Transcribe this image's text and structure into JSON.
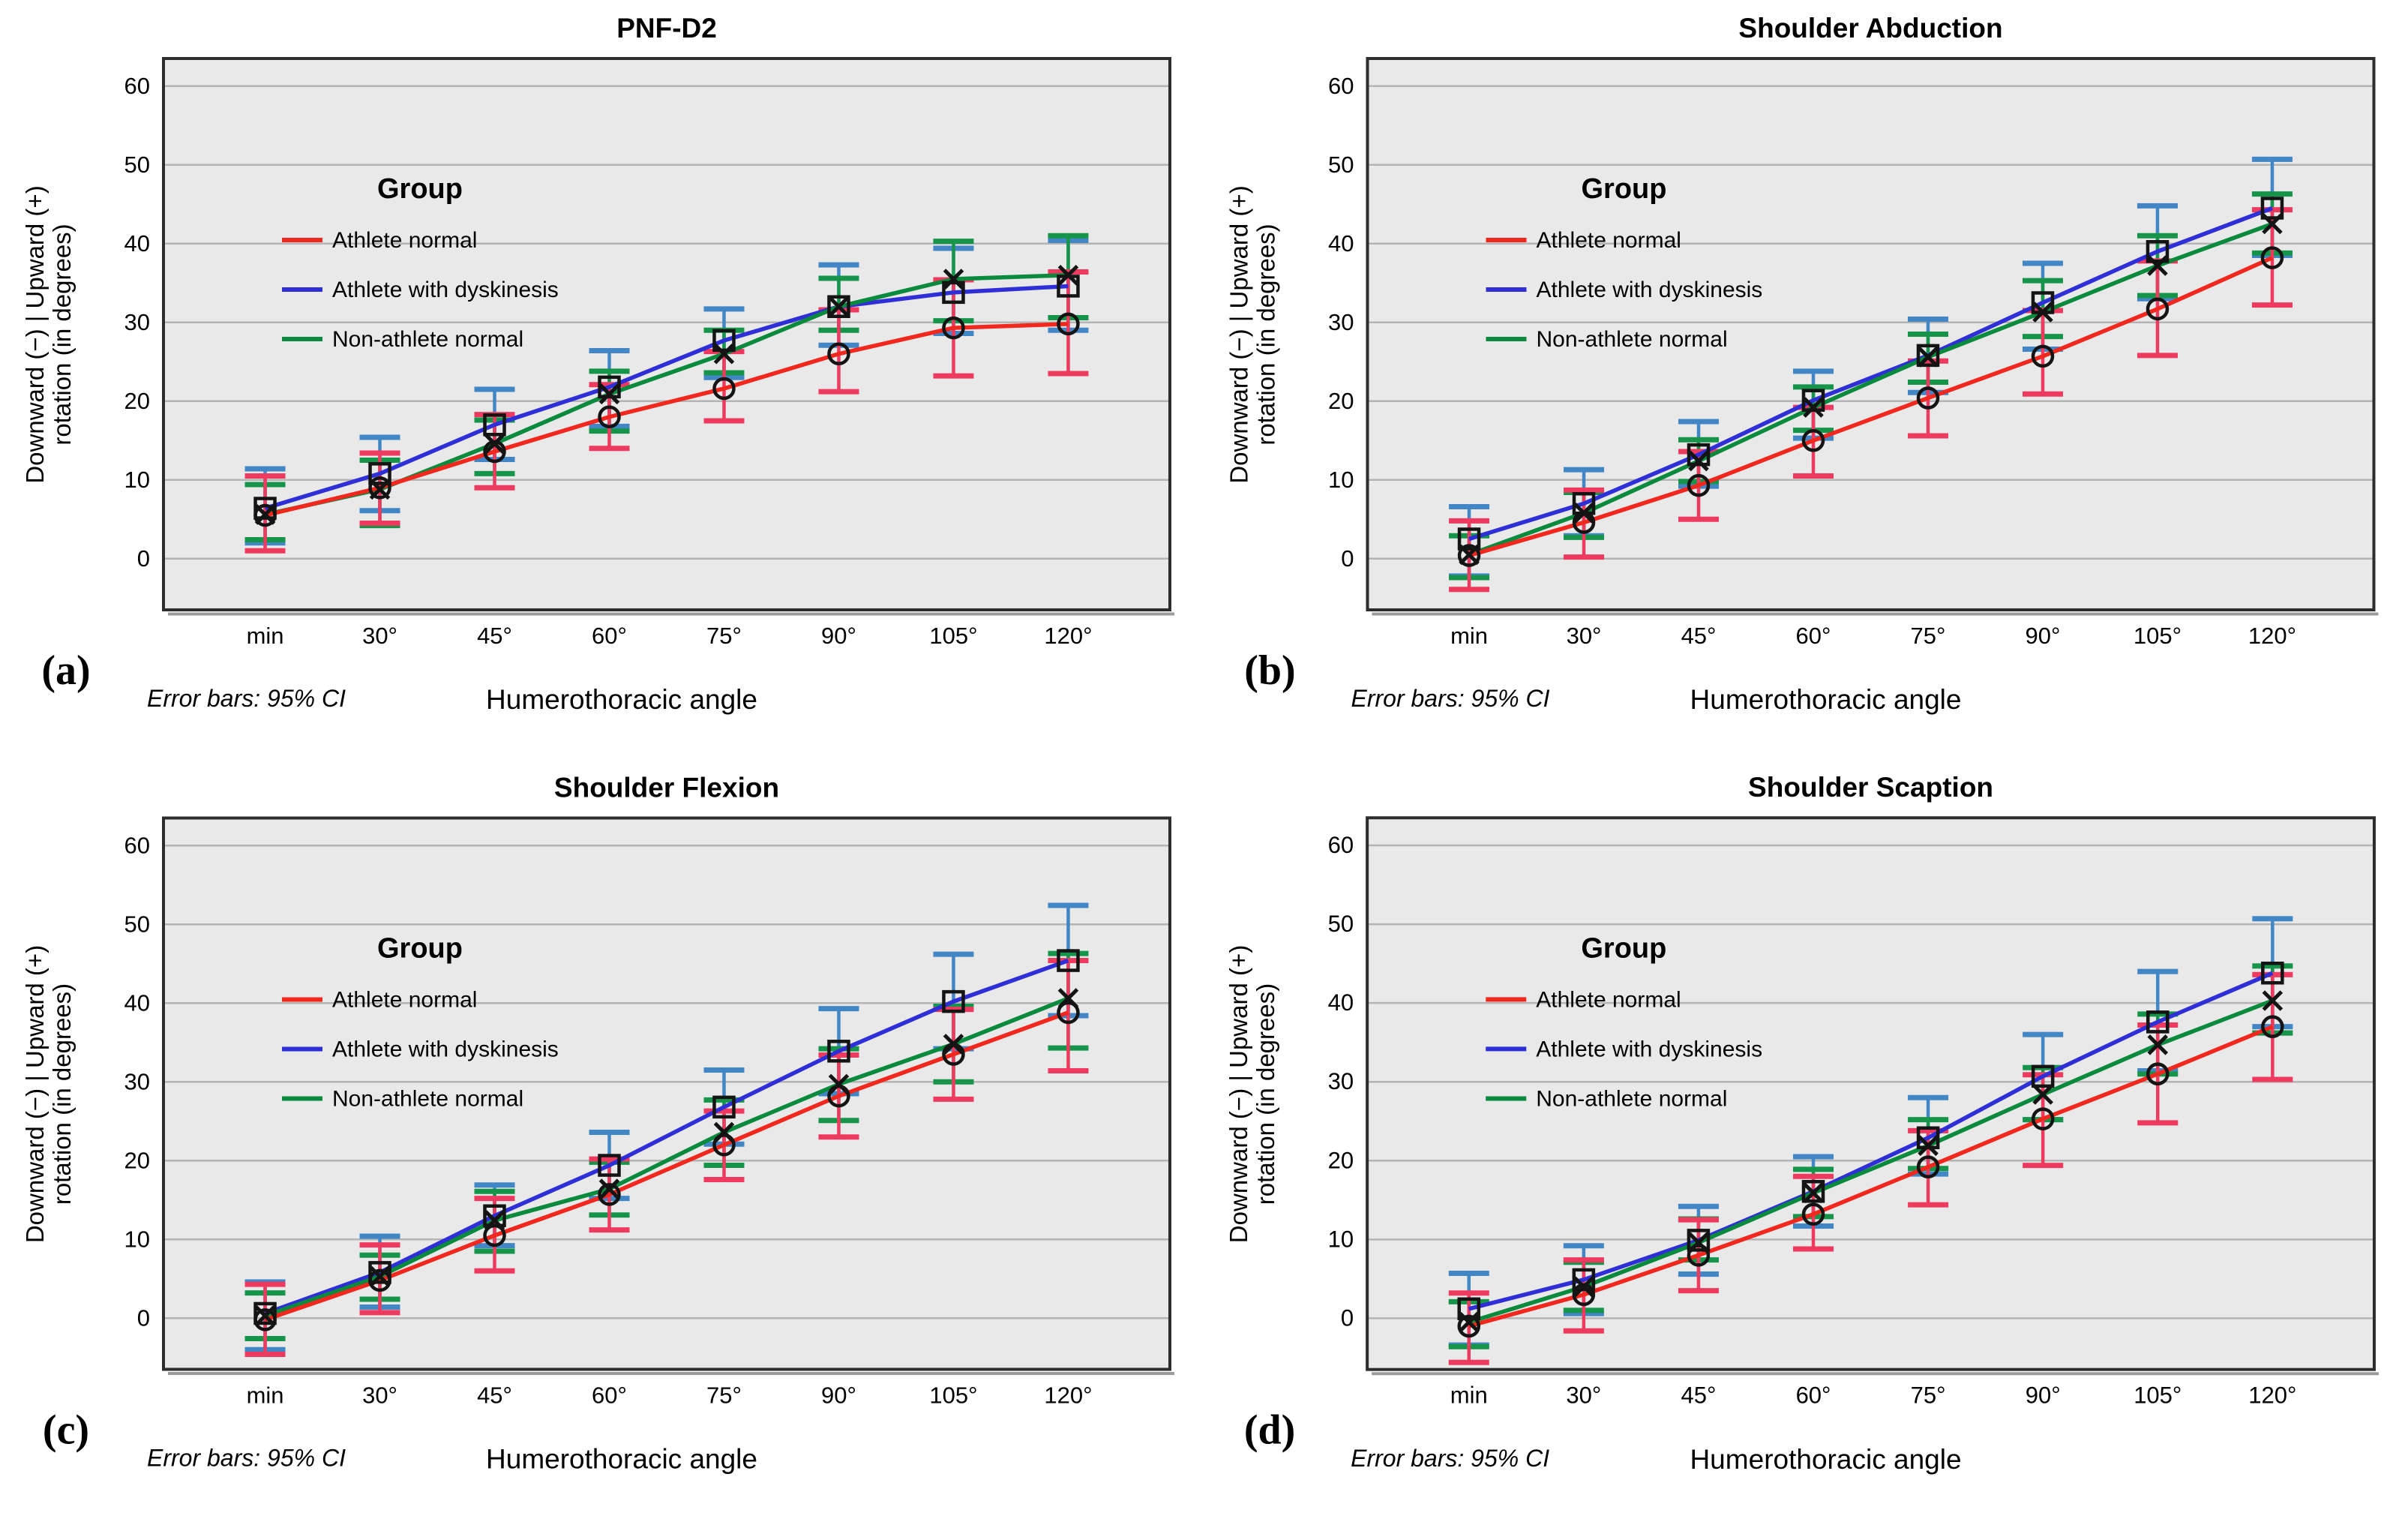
{
  "figure": {
    "error_note": "Error bars: 95% CI",
    "x_axis_label": "Humerothoracic angle",
    "y_axis_label_line1": "Downward (−) | Upward (+)",
    "y_axis_label_line2": "rotation (in degrees)",
    "legend_title": "Group",
    "y_ticks": [
      0,
      10,
      20,
      30,
      40,
      50,
      60
    ],
    "x_categories": [
      "min",
      "30°",
      "45°",
      "60°",
      "75°",
      "90°",
      "105°",
      "120°"
    ],
    "colors": {
      "red": {
        "line": "#f2271e",
        "error": "#ee3a5f"
      },
      "blue": {
        "line": "#2f2fd8",
        "error": "#4286c6"
      },
      "green": {
        "line": "#0a8a3c",
        "error": "#16954a"
      },
      "plot_bg": "#e9e9e9",
      "grid": "#b4b4b4",
      "frame": "#2d2d2d",
      "frame_shadow": "#9a9a9a",
      "marker": "#141414",
      "text": "#000000"
    }
  },
  "chart_data": [
    {
      "id": "a",
      "label": "(a)",
      "title": "PNF-D2",
      "type": "line",
      "xlabel": "Humerothoracic angle",
      "ylabel": "Downward (−) | Upward (+) rotation (in degrees)",
      "ylim": [
        -6.5,
        63.5
      ],
      "categories": [
        "min",
        "30°",
        "45°",
        "60°",
        "75°",
        "90°",
        "105°",
        "120°"
      ],
      "legend_position": "upper-left-inside",
      "grid": "horizontal",
      "series": [
        {
          "name": "Athlete normal",
          "color_key": "red",
          "marker": "circle",
          "values": [
            5.5,
            9.0,
            13.6,
            18.0,
            21.6,
            26.0,
            29.3,
            29.8
          ],
          "ci_low": [
            1.0,
            4.5,
            9.0,
            14.0,
            17.5,
            21.2,
            23.2,
            23.5
          ],
          "ci_high": [
            10.5,
            13.4,
            18.3,
            22.1,
            26.3,
            31.6,
            35.4,
            36.4
          ]
        },
        {
          "name": "Athlete with dyskinesis",
          "color_key": "blue",
          "marker": "square",
          "values": [
            6.4,
            10.8,
            17.0,
            21.8,
            27.7,
            32.0,
            33.8,
            34.6
          ],
          "ci_low": [
            2.0,
            6.1,
            12.6,
            16.8,
            23.0,
            27.1,
            28.6,
            29.0
          ],
          "ci_high": [
            11.4,
            15.4,
            21.5,
            26.4,
            31.7,
            37.3,
            39.4,
            40.4
          ]
        },
        {
          "name": "Non-athlete normal",
          "color_key": "green",
          "marker": "x",
          "values": [
            5.6,
            8.8,
            14.6,
            20.9,
            26.0,
            32.0,
            35.5,
            36.0
          ],
          "ci_low": [
            2.4,
            4.2,
            10.8,
            16.2,
            23.6,
            29.0,
            30.2,
            30.6
          ],
          "ci_high": [
            9.4,
            12.5,
            17.6,
            23.8,
            29.0,
            35.6,
            40.3,
            41.0
          ]
        }
      ]
    },
    {
      "id": "b",
      "label": "(b)",
      "title": "Shoulder Abduction",
      "type": "line",
      "xlabel": "Humerothoracic angle",
      "ylabel": "Downward (−) | Upward (+) rotation (in degrees)",
      "ylim": [
        -6.5,
        63.5
      ],
      "categories": [
        "min",
        "30°",
        "45°",
        "60°",
        "75°",
        "90°",
        "105°",
        "120°"
      ],
      "legend_position": "upper-left-inside",
      "grid": "horizontal",
      "series": [
        {
          "name": "Athlete normal",
          "color_key": "red",
          "marker": "circle",
          "values": [
            0.4,
            4.6,
            9.3,
            15.0,
            20.4,
            25.7,
            31.7,
            38.2
          ],
          "ci_low": [
            -3.9,
            0.2,
            5.0,
            10.5,
            15.6,
            20.9,
            25.8,
            32.2
          ],
          "ci_high": [
            4.8,
            8.7,
            13.6,
            19.2,
            25.1,
            31.5,
            37.8,
            44.3
          ]
        },
        {
          "name": "Athlete with dyskinesis",
          "color_key": "blue",
          "marker": "square",
          "values": [
            2.5,
            7.0,
            13.2,
            20.1,
            25.8,
            32.5,
            39.0,
            44.5
          ],
          "ci_low": [
            -2.2,
            2.9,
            9.2,
            15.3,
            21.1,
            26.6,
            33.0,
            38.5
          ],
          "ci_high": [
            6.6,
            11.3,
            17.4,
            23.8,
            30.4,
            37.5,
            44.8,
            50.7
          ]
        },
        {
          "name": "Non-athlete normal",
          "color_key": "green",
          "marker": "x",
          "values": [
            0.5,
            5.8,
            12.4,
            19.2,
            25.6,
            31.3,
            37.2,
            42.5
          ],
          "ci_low": [
            -2.4,
            2.7,
            9.8,
            16.3,
            22.4,
            28.2,
            33.4,
            38.8
          ],
          "ci_high": [
            2.9,
            8.4,
            15.1,
            21.8,
            28.5,
            35.3,
            41.0,
            46.3
          ]
        }
      ]
    },
    {
      "id": "c",
      "label": "(c)",
      "title": "Shoulder Flexion",
      "type": "line",
      "xlabel": "Humerothoracic angle",
      "ylabel": "Downward (−) | Upward (+) rotation (in degrees)",
      "ylim": [
        -6.5,
        63.5
      ],
      "categories": [
        "min",
        "30°",
        "45°",
        "60°",
        "75°",
        "90°",
        "105°",
        "120°"
      ],
      "legend_position": "upper-left-inside",
      "grid": "horizontal",
      "series": [
        {
          "name": "Athlete normal",
          "color_key": "red",
          "marker": "circle",
          "values": [
            -0.2,
            4.8,
            10.5,
            15.7,
            22.0,
            28.2,
            33.5,
            38.8
          ],
          "ci_low": [
            -4.6,
            0.7,
            6.0,
            11.2,
            17.6,
            23.0,
            27.8,
            31.4
          ],
          "ci_high": [
            4.3,
            9.3,
            15.2,
            20.2,
            26.3,
            33.4,
            39.2,
            45.4
          ]
        },
        {
          "name": "Athlete with dyskinesis",
          "color_key": "blue",
          "marker": "square",
          "values": [
            0.6,
            5.8,
            13.0,
            19.4,
            26.8,
            33.9,
            40.2,
            45.4
          ],
          "ci_low": [
            -4.0,
            1.4,
            9.2,
            15.2,
            22.1,
            28.5,
            34.2,
            38.4
          ],
          "ci_high": [
            4.6,
            10.4,
            16.9,
            23.6,
            31.5,
            39.3,
            46.2,
            52.4
          ]
        },
        {
          "name": "Non-athlete normal",
          "color_key": "green",
          "marker": "x",
          "values": [
            0.3,
            5.3,
            12.4,
            16.4,
            23.6,
            29.7,
            34.8,
            40.6
          ],
          "ci_low": [
            -2.6,
            2.4,
            8.5,
            13.1,
            19.4,
            25.1,
            30.0,
            34.3
          ],
          "ci_high": [
            3.2,
            8.0,
            16.1,
            19.8,
            27.7,
            34.2,
            39.6,
            46.3
          ]
        }
      ]
    },
    {
      "id": "d",
      "label": "(d)",
      "title": "Shoulder Scaption",
      "type": "line",
      "xlabel": "Humerothoracic angle",
      "ylabel": "Downward (−) | Upward (+) rotation (in degrees)",
      "ylim": [
        -6.5,
        63.5
      ],
      "categories": [
        "min",
        "30°",
        "45°",
        "60°",
        "75°",
        "90°",
        "105°",
        "120°"
      ],
      "legend_position": "upper-left-inside",
      "grid": "horizontal",
      "series": [
        {
          "name": "Athlete normal",
          "color_key": "red",
          "marker": "circle",
          "values": [
            -1.0,
            3.0,
            8.0,
            13.2,
            19.2,
            25.3,
            31.0,
            37.0
          ],
          "ci_low": [
            -5.6,
            -1.6,
            3.5,
            8.8,
            14.4,
            19.4,
            24.8,
            30.3
          ],
          "ci_high": [
            3.2,
            7.4,
            12.5,
            18.0,
            23.8,
            30.9,
            37.2,
            43.6
          ]
        },
        {
          "name": "Athlete with dyskinesis",
          "color_key": "blue",
          "marker": "square",
          "values": [
            1.2,
            4.9,
            9.9,
            16.1,
            22.9,
            30.7,
            37.6,
            43.8
          ],
          "ci_low": [
            -3.4,
            0.6,
            5.6,
            11.7,
            18.3,
            25.2,
            31.4,
            37.0
          ],
          "ci_high": [
            5.7,
            9.2,
            14.2,
            20.5,
            28.0,
            36.0,
            44.0,
            50.7
          ]
        },
        {
          "name": "Non-athlete normal",
          "color_key": "green",
          "marker": "x",
          "values": [
            -0.5,
            4.0,
            9.6,
            15.9,
            21.9,
            28.4,
            34.7,
            40.3
          ],
          "ci_low": [
            -3.6,
            1.0,
            7.4,
            12.9,
            19.0,
            25.2,
            31.0,
            36.2
          ],
          "ci_high": [
            2.1,
            7.1,
            12.6,
            18.9,
            25.2,
            31.8,
            38.6,
            44.7
          ]
        }
      ]
    }
  ]
}
